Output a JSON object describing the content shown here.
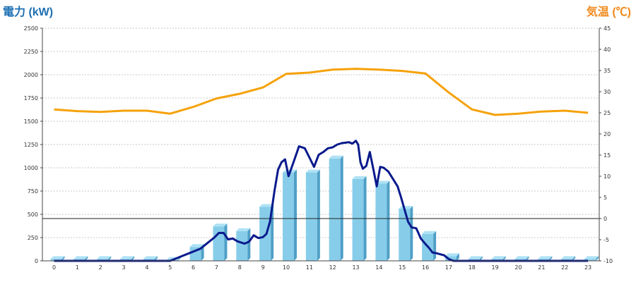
{
  "chart_data": {
    "type": "bar",
    "left_axis_title": "電力 (kW)",
    "right_axis_title": "気温 (℃)",
    "categories": [
      "0",
      "1",
      "2",
      "3",
      "4",
      "5",
      "6",
      "7",
      "8",
      "9",
      "10",
      "11",
      "12",
      "13",
      "14",
      "15",
      "16",
      "17",
      "18",
      "19",
      "20",
      "21",
      "22",
      "23"
    ],
    "y_left": {
      "min": 0,
      "max": 2500,
      "ticks": [
        "0",
        "250",
        "500",
        "750",
        "1000",
        "1250",
        "1500",
        "1750",
        "2000",
        "2250",
        "2500"
      ]
    },
    "y_right": {
      "min": -10,
      "max": 45,
      "ticks": [
        "-10",
        "-5",
        "0",
        "5",
        "10",
        "15",
        "20",
        "25",
        "30",
        "35",
        "40",
        "45"
      ]
    },
    "grid": true,
    "reference_line_temperature": 0,
    "bars": {
      "name": "電力 (kW)",
      "axis": "left",
      "color": "#87cdea",
      "values": [
        20,
        20,
        20,
        20,
        20,
        10,
        150,
        370,
        320,
        580,
        950,
        950,
        1100,
        880,
        830,
        560,
        290,
        50,
        20,
        20,
        20,
        20,
        20,
        20
      ]
    },
    "power_line": {
      "name": "電力 (kW)",
      "axis": "left",
      "color": "#0a1a8c",
      "x": [
        0,
        4,
        5,
        5.5,
        6,
        6.3,
        6.6,
        6.9,
        7.1,
        7.3,
        7.5,
        7.7,
        7.9,
        8.2,
        8.4,
        8.6,
        8.8,
        9.0,
        9.15,
        9.3,
        9.5,
        9.65,
        9.8,
        9.95,
        10.1,
        10.3,
        10.55,
        10.8,
        11.0,
        11.2,
        11.4,
        11.6,
        11.8,
        12.0,
        12.2,
        12.4,
        12.55,
        12.7,
        12.85,
        13.0,
        13.1,
        13.2,
        13.3,
        13.45,
        13.6,
        13.75,
        13.9,
        14.05,
        14.2,
        14.4,
        14.6,
        14.8,
        14.95,
        15.1,
        15.25,
        15.4,
        15.6,
        15.8,
        16.0,
        16.15,
        16.3,
        16.5,
        16.8,
        17.0,
        17.2,
        23
      ],
      "values": [
        0,
        0,
        0,
        50,
        100,
        130,
        190,
        250,
        300,
        300,
        230,
        240,
        210,
        185,
        205,
        275,
        245,
        255,
        290,
        420,
        760,
        980,
        1060,
        1090,
        910,
        1050,
        1230,
        1210,
        1110,
        1010,
        1140,
        1170,
        1210,
        1220,
        1250,
        1265,
        1270,
        1275,
        1260,
        1290,
        1250,
        1060,
        990,
        1020,
        1170,
        990,
        800,
        1010,
        1000,
        960,
        880,
        800,
        680,
        550,
        420,
        360,
        350,
        240,
        180,
        140,
        90,
        80,
        60,
        20,
        0,
        0
      ]
    },
    "temperature_line": {
      "name": "気温 (℃)",
      "axis": "right",
      "color": "#f5a20a",
      "x": [
        0,
        1,
        2,
        3,
        4,
        5,
        6,
        7,
        8,
        9,
        10,
        11,
        12,
        13,
        14,
        15,
        16,
        17,
        18,
        19,
        20,
        21,
        22,
        23
      ],
      "values": [
        25.8,
        25.4,
        25.2,
        25.5,
        25.5,
        24.8,
        26.4,
        28.4,
        29.5,
        31.0,
        34.2,
        34.5,
        35.2,
        35.4,
        35.2,
        34.9,
        34.3,
        29.8,
        25.8,
        24.5,
        24.8,
        25.3,
        25.5,
        25.0
      ]
    }
  }
}
